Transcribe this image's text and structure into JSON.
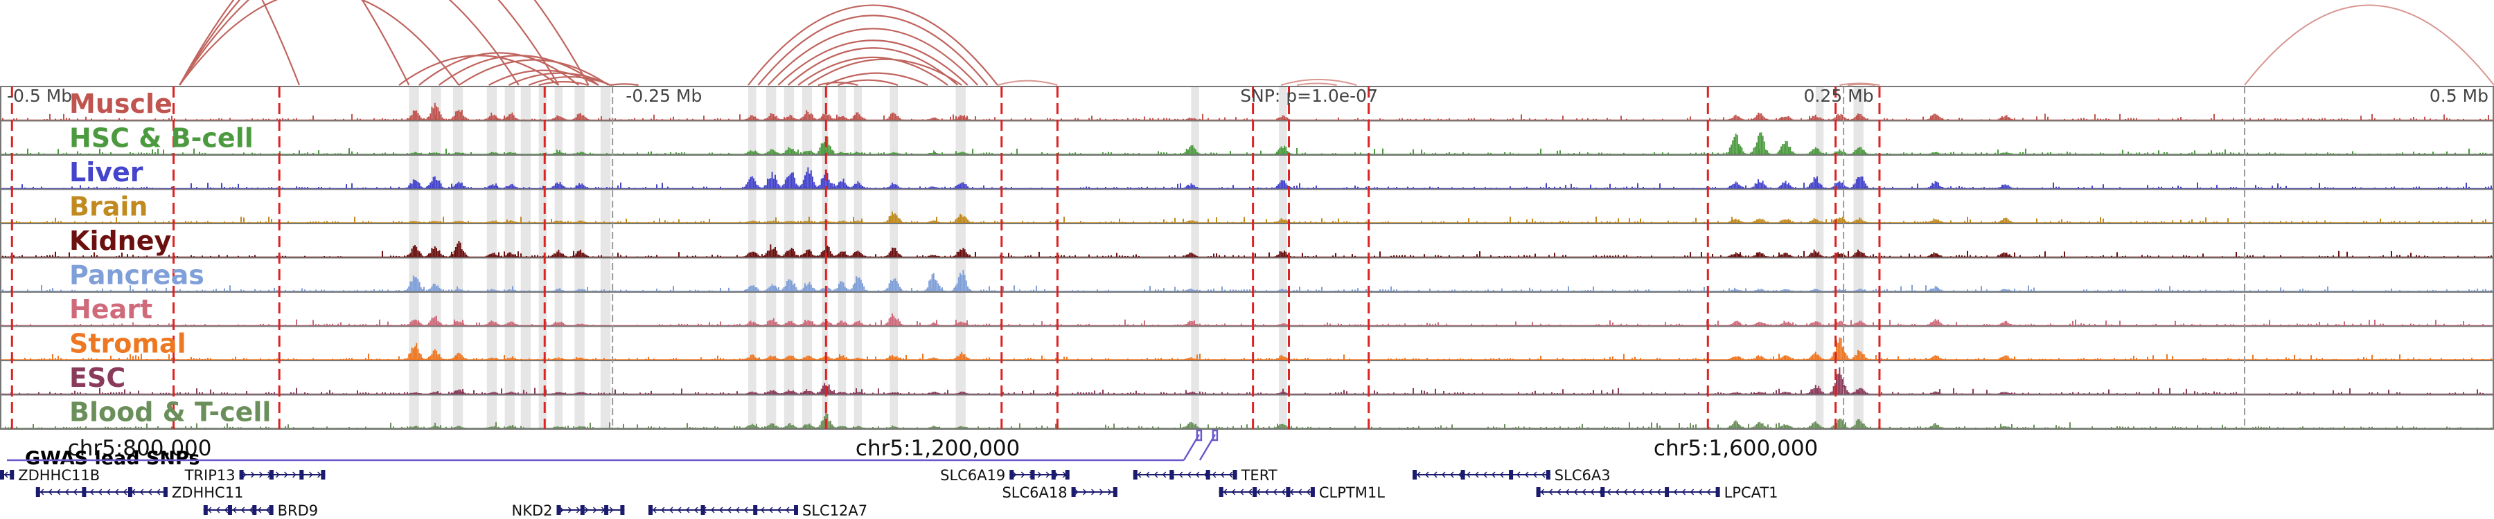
{
  "chart_data": {
    "type": "genome-browser",
    "colors": {
      "highlight": "#e6e6e6",
      "red_line": "#dd2222",
      "arc": "#c0645e",
      "arc_light": "#d99690",
      "snp": "#6a5acd",
      "gene": "#1a1a6e",
      "frame": "#777777"
    },
    "region": {
      "start": 730000,
      "end": 1980000
    },
    "scale_labels": [
      {
        "text": "-0.5 Mb",
        "pos": 730000
      },
      {
        "text": "-0.25 Mb",
        "pos": 1044000
      },
      {
        "text": "SNP: p=1.0e-07",
        "pos": 1353000
      },
      {
        "text": "0.25 Mb",
        "pos": 1658000
      },
      {
        "text": "0.5 Mb",
        "pos": 1978000
      }
    ],
    "coordinate_ticks": [
      {
        "text": "chr5:800,000",
        "pos": 800000
      },
      {
        "text": "chr5:1,200,000",
        "pos": 1200000
      },
      {
        "text": "chr5:1,600,000",
        "pos": 1600000
      }
    ],
    "tracks": [
      {
        "name": "Muscle",
        "color": "#c0544f"
      },
      {
        "name": "HSC & B-cell",
        "color": "#4c9a3f"
      },
      {
        "name": "Liver",
        "color": "#4444cc"
      },
      {
        "name": "Brain",
        "color": "#c08a1e"
      },
      {
        "name": "Kidney",
        "color": "#6b0f0f"
      },
      {
        "name": "Pancreas",
        "color": "#7f9fd8"
      },
      {
        "name": "Heart",
        "color": "#cf6a7a"
      },
      {
        "name": "Stromal",
        "color": "#ee7722"
      },
      {
        "name": "ESC",
        "color": "#8a3a5a"
      },
      {
        "name": "Blood & T-cell",
        "color": "#6a8f5a"
      }
    ],
    "red_lines": [
      736000,
      817000,
      870000,
      1003000,
      1144000,
      1232000,
      1260000,
      1358000,
      1376000,
      1416000,
      1586000,
      1650000,
      1672000
    ],
    "gray_lines": [
      1037000,
      1654000,
      1855000
    ],
    "highlights": [
      [
        935000,
        940000
      ],
      [
        946000,
        951000
      ],
      [
        957000,
        962000
      ],
      [
        974000,
        979000
      ],
      [
        983000,
        988000
      ],
      [
        991000,
        996000
      ],
      [
        1000000,
        1004000
      ],
      [
        1008000,
        1012000
      ],
      [
        1018000,
        1023000
      ],
      [
        1031000,
        1036000
      ],
      [
        1105000,
        1109000
      ],
      [
        1114000,
        1119000
      ],
      [
        1123000,
        1128000
      ],
      [
        1132000,
        1137000
      ],
      [
        1142000,
        1145000
      ],
      [
        1150000,
        1154000
      ],
      [
        1158000,
        1162000
      ],
      [
        1176000,
        1180000
      ],
      [
        1209000,
        1214000
      ],
      [
        1327000,
        1331000
      ],
      [
        1371000,
        1375000
      ],
      [
        1640000,
        1644000
      ],
      [
        1659000,
        1664000
      ]
    ],
    "peaks": [
      {
        "pos": 938000,
        "h": [
          0.4,
          0.1,
          0.4,
          0.1,
          0.5,
          0.7,
          0.3,
          0.7,
          0.1,
          0.1
        ]
      },
      {
        "pos": 948000,
        "h": [
          0.7,
          0.1,
          0.6,
          0.1,
          0.5,
          0.3,
          0.4,
          0.4,
          0.1,
          0.1
        ]
      },
      {
        "pos": 960000,
        "h": [
          0.5,
          0.1,
          0.3,
          0.1,
          0.6,
          0.1,
          0.2,
          0.3,
          0.2,
          0.1
        ]
      },
      {
        "pos": 977000,
        "h": [
          0.3,
          0.1,
          0.2,
          0.1,
          0.2,
          0.1,
          0.2,
          0.1,
          0.1,
          0.1
        ]
      },
      {
        "pos": 986000,
        "h": [
          0.3,
          0.1,
          0.2,
          0.1,
          0.2,
          0.1,
          0.2,
          0.1,
          0.1,
          0.1
        ]
      },
      {
        "pos": 1010000,
        "h": [
          0.2,
          0.1,
          0.3,
          0.1,
          0.3,
          0.1,
          0.2,
          0.1,
          0.1,
          0.1
        ]
      },
      {
        "pos": 1021000,
        "h": [
          0.3,
          0.1,
          0.2,
          0.1,
          0.3,
          0.1,
          0.1,
          0.1,
          0.1,
          0.1
        ]
      },
      {
        "pos": 1107000,
        "h": [
          0.2,
          0.2,
          0.5,
          0.1,
          0.3,
          0.3,
          0.2,
          0.2,
          0.1,
          0.2
        ]
      },
      {
        "pos": 1117000,
        "h": [
          0.3,
          0.2,
          0.7,
          0.1,
          0.5,
          0.3,
          0.3,
          0.2,
          0.2,
          0.2
        ]
      },
      {
        "pos": 1126000,
        "h": [
          0.2,
          0.3,
          0.8,
          0.1,
          0.4,
          0.6,
          0.2,
          0.2,
          0.2,
          0.2
        ]
      },
      {
        "pos": 1135000,
        "h": [
          0.4,
          0.2,
          0.9,
          0.1,
          0.3,
          0.4,
          0.3,
          0.2,
          0.2,
          0.2
        ]
      },
      {
        "pos": 1144000,
        "h": [
          0.3,
          0.8,
          0.7,
          0.1,
          0.5,
          0.2,
          0.2,
          0.2,
          0.5,
          0.6
        ]
      },
      {
        "pos": 1152000,
        "h": [
          0.2,
          0.1,
          0.4,
          0.1,
          0.3,
          0.4,
          0.2,
          0.2,
          0.1,
          0.1
        ]
      },
      {
        "pos": 1160000,
        "h": [
          0.3,
          0.1,
          0.3,
          0.1,
          0.3,
          0.6,
          0.2,
          0.1,
          0.1,
          0.1
        ]
      },
      {
        "pos": 1178000,
        "h": [
          0.3,
          0.1,
          0.2,
          0.5,
          0.4,
          0.6,
          0.5,
          0.2,
          0.1,
          0.1
        ]
      },
      {
        "pos": 1198000,
        "h": [
          0.1,
          0.1,
          0.1,
          0.1,
          0.1,
          0.8,
          0.1,
          0.1,
          0.1,
          0.1
        ]
      },
      {
        "pos": 1212000,
        "h": [
          0.2,
          0.1,
          0.3,
          0.4,
          0.4,
          0.9,
          0.2,
          0.3,
          0.1,
          0.1
        ]
      },
      {
        "pos": 1327000,
        "h": [
          0.1,
          0.4,
          0.2,
          0.1,
          0.2,
          0.1,
          0.2,
          0.1,
          0.1,
          0.3
        ]
      },
      {
        "pos": 1373000,
        "h": [
          0.2,
          0.4,
          0.4,
          0.2,
          0.3,
          0.1,
          0.1,
          0.2,
          0.1,
          0.2
        ]
      },
      {
        "pos": 1600000,
        "h": [
          0.2,
          0.8,
          0.3,
          0.2,
          0.2,
          0.1,
          0.2,
          0.2,
          0.1,
          0.3
        ]
      },
      {
        "pos": 1612000,
        "h": [
          0.3,
          0.9,
          0.4,
          0.2,
          0.2,
          0.1,
          0.2,
          0.2,
          0.1,
          0.3
        ]
      },
      {
        "pos": 1625000,
        "h": [
          0.2,
          0.6,
          0.3,
          0.2,
          0.2,
          0.1,
          0.2,
          0.2,
          0.1,
          0.2
        ]
      },
      {
        "pos": 1640000,
        "h": [
          0.2,
          0.3,
          0.5,
          0.2,
          0.3,
          0.1,
          0.2,
          0.3,
          0.4,
          0.3
        ]
      },
      {
        "pos": 1652000,
        "h": [
          0.3,
          0.2,
          0.4,
          0.3,
          0.2,
          0.1,
          0.2,
          1.0,
          1.0,
          0.4
        ]
      },
      {
        "pos": 1662000,
        "h": [
          0.3,
          0.3,
          0.6,
          0.2,
          0.3,
          0.1,
          0.2,
          0.4,
          0.3,
          0.4
        ]
      },
      {
        "pos": 1700000,
        "h": [
          0.3,
          0.1,
          0.3,
          0.2,
          0.2,
          0.2,
          0.3,
          0.2,
          0.1,
          0.2
        ]
      },
      {
        "pos": 1735000,
        "h": [
          0.2,
          0.1,
          0.2,
          0.2,
          0.2,
          0.1,
          0.2,
          0.2,
          0.1,
          0.1
        ]
      }
    ],
    "arcs": [
      [
        695000,
        880000,
        1.9,
        "dark"
      ],
      [
        700000,
        935000,
        1.5,
        "dark"
      ],
      [
        820000,
        960000,
        1.0,
        "dark"
      ],
      [
        820000,
        990000,
        1.15,
        "dark"
      ],
      [
        820000,
        1010000,
        1.25,
        "dark"
      ],
      [
        820000,
        1025000,
        1.35,
        "dark"
      ],
      [
        930000,
        1010000,
        0.55,
        "dark"
      ],
      [
        940000,
        1020000,
        0.6,
        "dark"
      ],
      [
        950000,
        1030000,
        0.55,
        "dark"
      ],
      [
        960000,
        1035000,
        0.5,
        "dark"
      ],
      [
        975000,
        1030000,
        0.4,
        "dark"
      ],
      [
        985000,
        1036000,
        0.35,
        "dark"
      ],
      [
        995000,
        1036000,
        0.3,
        "dark"
      ],
      [
        1000000,
        1025000,
        0.2,
        "dark"
      ],
      [
        1036000,
        1050000,
        0.12,
        "dark"
      ],
      [
        1105000,
        1230000,
        0.95,
        "dark"
      ],
      [
        1110000,
        1225000,
        0.9,
        "dark"
      ],
      [
        1115000,
        1220000,
        0.8,
        "dark"
      ],
      [
        1120000,
        1215000,
        0.7,
        "dark"
      ],
      [
        1125000,
        1210000,
        0.65,
        "dark"
      ],
      [
        1130000,
        1205000,
        0.55,
        "dark"
      ],
      [
        1135000,
        1212000,
        0.5,
        "dark"
      ],
      [
        1140000,
        1160000,
        0.2,
        "dark"
      ],
      [
        1150000,
        1180000,
        0.25,
        "dark"
      ],
      [
        1144000,
        1195000,
        0.35,
        "dark"
      ],
      [
        1230000,
        1260000,
        0.22,
        "light"
      ],
      [
        1372000,
        1410000,
        0.22,
        "light"
      ],
      [
        1380000,
        1400000,
        0.13,
        "light"
      ],
      [
        1652000,
        1672000,
        0.13,
        "light"
      ],
      [
        1656000,
        1670000,
        0.08,
        "light"
      ],
      [
        1855000,
        1980000,
        0.95,
        "light"
      ]
    ],
    "snp_title": "GWAS lead SNPs",
    "snps": [
      1331000,
      1339000
    ],
    "genes": [
      {
        "name": "ZDHHC11B",
        "start": 730000,
        "end": 737000,
        "row": 0,
        "strand": "-",
        "label_side": "right"
      },
      {
        "name": "TRIP13",
        "start": 850000,
        "end": 893000,
        "row": 0,
        "strand": "+",
        "label_side": "left"
      },
      {
        "name": "ZDHHC11",
        "start": 748000,
        "end": 814000,
        "row": 1,
        "strand": "-",
        "label_side": "right"
      },
      {
        "name": "BRD9",
        "start": 832000,
        "end": 867000,
        "row": 2,
        "strand": "-",
        "label_side": "right"
      },
      {
        "name": "NKD2",
        "start": 1009000,
        "end": 1043000,
        "row": 2,
        "strand": "+",
        "label_side": "left"
      },
      {
        "name": "SLC12A7",
        "start": 1055000,
        "end": 1130000,
        "row": 2,
        "strand": "-",
        "label_side": "right"
      },
      {
        "name": "SLC6A19",
        "start": 1236000,
        "end": 1266000,
        "row": 0,
        "strand": "+",
        "label_side": "left"
      },
      {
        "name": "SLC6A18",
        "start": 1267000,
        "end": 1290000,
        "row": 1,
        "strand": "+",
        "label_side": "left"
      },
      {
        "name": "TERT",
        "start": 1298000,
        "end": 1350000,
        "row": 0,
        "strand": "-",
        "label_side": "right"
      },
      {
        "name": "CLPTM1L",
        "start": 1341000,
        "end": 1389000,
        "row": 1,
        "strand": "-",
        "label_side": "right"
      },
      {
        "name": "SLC6A3",
        "start": 1438000,
        "end": 1507000,
        "row": 0,
        "strand": "-",
        "label_side": "right"
      },
      {
        "name": "LPCAT1",
        "start": 1500000,
        "end": 1592000,
        "row": 1,
        "strand": "-",
        "label_side": "right"
      }
    ]
  }
}
